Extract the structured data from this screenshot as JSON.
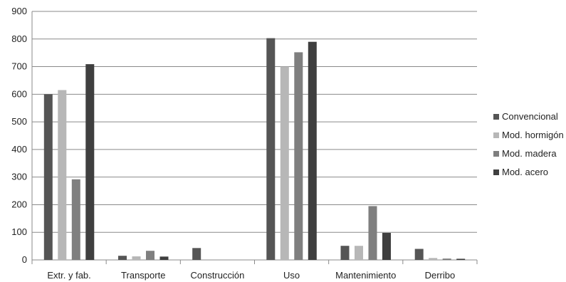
{
  "chart_data": {
    "type": "bar",
    "categories": [
      "Extr. y fab.",
      "Transporte",
      "Construcción",
      "Uso",
      "Mantenimiento",
      "Derribo"
    ],
    "series": [
      {
        "name": "Convencional",
        "color": "#555555",
        "values": [
          600,
          15,
          43,
          803,
          51,
          40
        ]
      },
      {
        "name": "Mod. hormigón",
        "color": "#b7b7b7",
        "values": [
          615,
          13,
          0,
          700,
          51,
          7
        ]
      },
      {
        "name": "Mod. madera",
        "color": "#7f7f7f",
        "values": [
          292,
          33,
          0,
          752,
          195,
          5
        ]
      },
      {
        "name": "Mod. acero",
        "color": "#3f3f3f",
        "values": [
          709,
          12,
          0,
          790,
          98,
          4
        ]
      }
    ],
    "ylim": [
      0,
      900
    ],
    "yticks": [
      0,
      100,
      200,
      300,
      400,
      500,
      600,
      700,
      800,
      900
    ],
    "grid": true,
    "legend_position": "right",
    "title": "",
    "xlabel": "",
    "ylabel": ""
  }
}
